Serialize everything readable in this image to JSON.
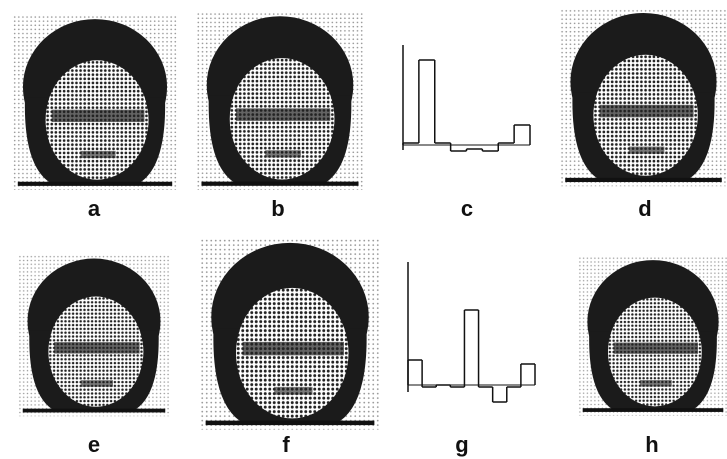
{
  "panels": [
    {
      "label": "a"
    },
    {
      "label": "b"
    },
    {
      "label": "c",
      "values": [
        2,
        85,
        2,
        -6,
        -4,
        -6,
        2,
        20
      ]
    },
    {
      "label": "d"
    },
    {
      "label": "e"
    },
    {
      "label": "f"
    },
    {
      "label": "g",
      "values": [
        25,
        -2,
        0,
        -2,
        75,
        -2,
        -17,
        -2,
        21
      ]
    },
    {
      "label": "h"
    }
  ]
}
